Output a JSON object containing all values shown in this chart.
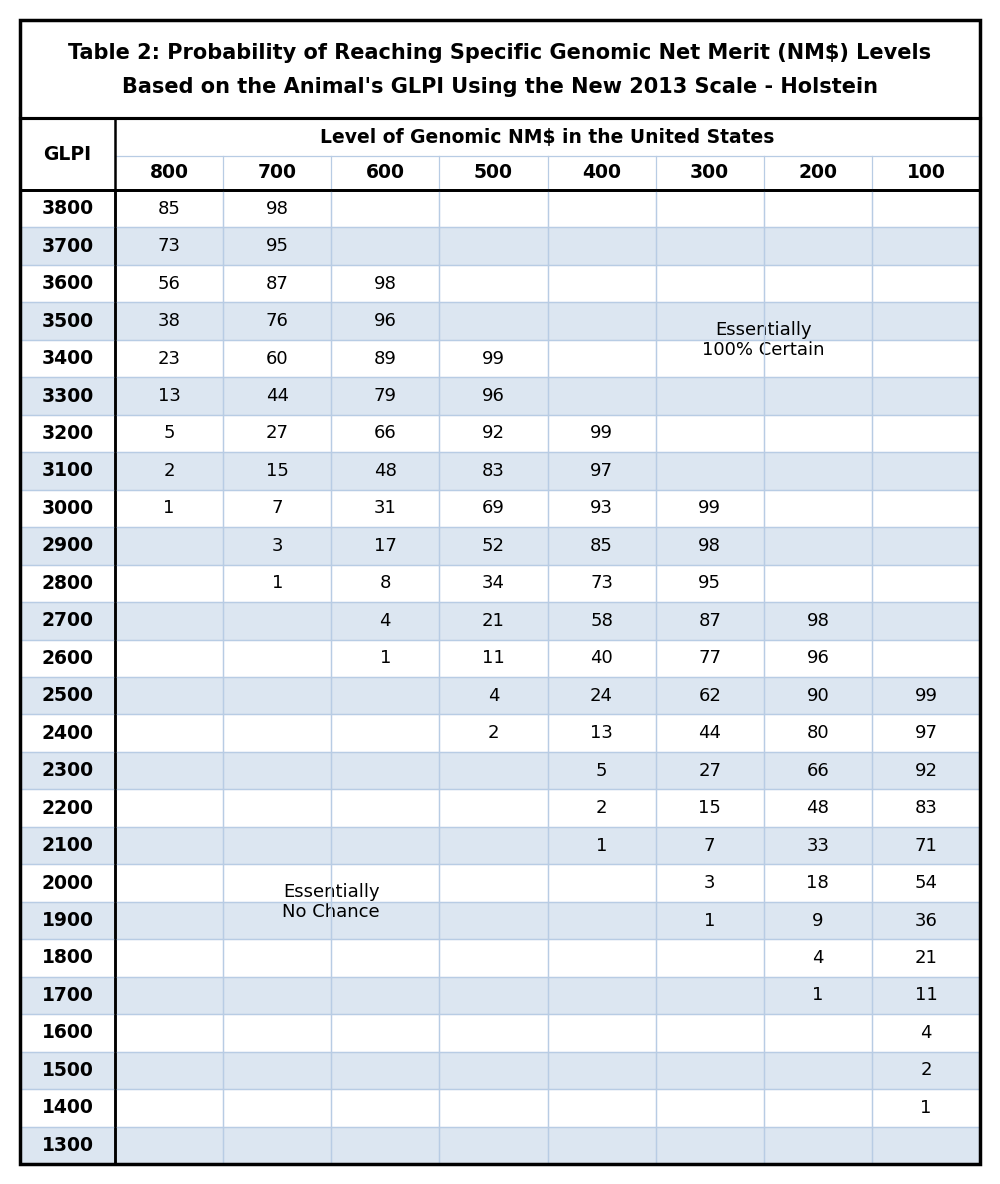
{
  "title_line1": "Table 2: Probability of Reaching Specific Genomic Net Merit (NM$) Levels",
  "title_line2": "Based on the Animal's GLPI Using the New 2013 Scale - Holstein",
  "col_header_main": "Level of Genomic NM$ in the United States",
  "col_header_glpi": "GLPI",
  "col_headers": [
    "800",
    "700",
    "600",
    "500",
    "400",
    "300",
    "200",
    "100"
  ],
  "glpi_rows": [
    3800,
    3700,
    3600,
    3500,
    3400,
    3300,
    3200,
    3100,
    3000,
    2900,
    2800,
    2700,
    2600,
    2500,
    2400,
    2300,
    2200,
    2100,
    2000,
    1900,
    1800,
    1700,
    1600,
    1500,
    1400,
    1300
  ],
  "table_data": {
    "3800": {
      "800": "85",
      "700": "98",
      "600": "",
      "500": "",
      "400": "",
      "300": "",
      "200": "",
      "100": ""
    },
    "3700": {
      "800": "73",
      "700": "95",
      "600": "",
      "500": "",
      "400": "",
      "300": "",
      "200": "",
      "100": ""
    },
    "3600": {
      "800": "56",
      "700": "87",
      "600": "98",
      "500": "",
      "400": "",
      "300": "",
      "200": "",
      "100": ""
    },
    "3500": {
      "800": "38",
      "700": "76",
      "600": "96",
      "500": "",
      "400": "",
      "300": "",
      "200": "",
      "100": ""
    },
    "3400": {
      "800": "23",
      "700": "60",
      "600": "89",
      "500": "99",
      "400": "",
      "300": "",
      "200": "",
      "100": ""
    },
    "3300": {
      "800": "13",
      "700": "44",
      "600": "79",
      "500": "96",
      "400": "",
      "300": "",
      "200": "",
      "100": ""
    },
    "3200": {
      "800": "5",
      "700": "27",
      "600": "66",
      "500": "92",
      "400": "99",
      "300": "",
      "200": "",
      "100": ""
    },
    "3100": {
      "800": "2",
      "700": "15",
      "600": "48",
      "500": "83",
      "400": "97",
      "300": "",
      "200": "",
      "100": ""
    },
    "3000": {
      "800": "1",
      "700": "7",
      "600": "31",
      "500": "69",
      "400": "93",
      "300": "99",
      "200": "",
      "100": ""
    },
    "2900": {
      "800": "",
      "700": "3",
      "600": "17",
      "500": "52",
      "400": "85",
      "300": "98",
      "200": "",
      "100": ""
    },
    "2800": {
      "800": "",
      "700": "1",
      "600": "8",
      "500": "34",
      "400": "73",
      "300": "95",
      "200": "",
      "100": ""
    },
    "2700": {
      "800": "",
      "700": "",
      "600": "4",
      "500": "21",
      "400": "58",
      "300": "87",
      "200": "98",
      "100": ""
    },
    "2600": {
      "800": "",
      "700": "",
      "600": "1",
      "500": "11",
      "400": "40",
      "300": "77",
      "200": "96",
      "100": ""
    },
    "2500": {
      "800": "",
      "700": "",
      "600": "",
      "500": "4",
      "400": "24",
      "300": "62",
      "200": "90",
      "100": "99"
    },
    "2400": {
      "800": "",
      "700": "",
      "600": "",
      "500": "2",
      "400": "13",
      "300": "44",
      "200": "80",
      "100": "97"
    },
    "2300": {
      "800": "",
      "700": "",
      "600": "",
      "500": "",
      "400": "5",
      "300": "27",
      "200": "66",
      "100": "92"
    },
    "2200": {
      "800": "",
      "700": "",
      "600": "",
      "500": "",
      "400": "2",
      "300": "15",
      "200": "48",
      "100": "83"
    },
    "2100": {
      "800": "",
      "700": "",
      "600": "",
      "500": "",
      "400": "1",
      "300": "7",
      "200": "33",
      "100": "71"
    },
    "2000": {
      "800": "",
      "700": "",
      "600": "",
      "500": "",
      "400": "",
      "300": "3",
      "200": "18",
      "100": "54"
    },
    "1900": {
      "800": "",
      "700": "",
      "600": "",
      "500": "",
      "400": "",
      "300": "1",
      "200": "9",
      "100": "36"
    },
    "1800": {
      "800": "",
      "700": "",
      "600": "",
      "500": "",
      "400": "",
      "300": "",
      "200": "4",
      "100": "21"
    },
    "1700": {
      "800": "",
      "700": "",
      "600": "",
      "500": "",
      "400": "",
      "300": "",
      "200": "1",
      "100": "11"
    },
    "1600": {
      "800": "",
      "700": "",
      "600": "",
      "500": "",
      "400": "",
      "300": "",
      "200": "",
      "100": "4"
    },
    "1500": {
      "800": "",
      "700": "",
      "600": "",
      "500": "",
      "400": "",
      "300": "",
      "200": "",
      "100": "2"
    },
    "1400": {
      "800": "",
      "700": "",
      "600": "",
      "500": "",
      "400": "",
      "300": "",
      "200": "",
      "100": "1"
    },
    "1300": {
      "800": "",
      "700": "",
      "600": "",
      "500": "",
      "400": "",
      "300": "",
      "200": "",
      "100": ""
    }
  },
  "bg_color": "#ffffff",
  "cell_bg_light": "#dce6f1",
  "cell_bg_white": "#ffffff",
  "border_outer": "#000000",
  "border_inner": "#b8cce4",
  "title_fontsize": 15,
  "header_fontsize": 13.5,
  "cell_fontsize": 13,
  "glpi_fontsize": 13.5
}
